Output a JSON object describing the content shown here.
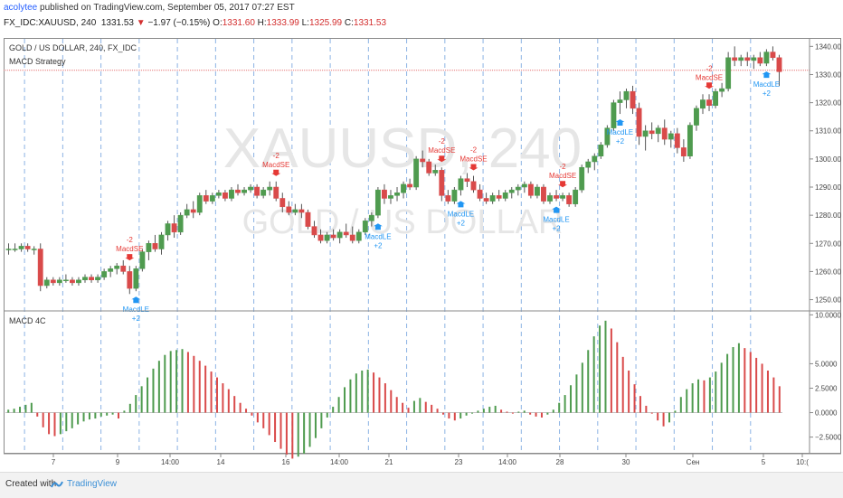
{
  "header": {
    "author": "acolytee",
    "published": " published on TradingView.com, September 05, 2017 07:27 EST",
    "symbol": "FX_IDC:XAUUSD, 240",
    "last": "1331.53",
    "change": "−1.97 (−0.15%)",
    "o_label": "O:",
    "o": "1331.60",
    "h_label": "H:",
    "h": "1333.99",
    "l_label": "L:",
    "l": "1325.99",
    "c_label": "C:",
    "c": "1331.53"
  },
  "price_pane": {
    "title": "GOLD / US DOLLAR, 240, FX_IDC",
    "strategy": "MACD Strategy",
    "watermark_big": "XAUUSD, 240",
    "watermark_small": "GOLD / US DOLLAR",
    "last_price_line": 1331.53
  },
  "macd_pane": {
    "title": "MACD 4C"
  },
  "footer": {
    "created": "Created with",
    "brand": "TradingView"
  },
  "colors": {
    "up": "#4f9b4f",
    "down": "#d94a4a",
    "buy": "#2196f3",
    "sell": "#e53935",
    "grid": "#6fa0dd"
  },
  "chart_data": [
    {
      "type": "candlestick",
      "title": "GOLD / US DOLLAR, 240, FX_IDC",
      "ylim": [
        1246,
        1343
      ],
      "y_ticks": [
        1250.0,
        1260.0,
        1270.0,
        1280.0,
        1290.0,
        1300.0,
        1310.0,
        1320.0,
        1330.0,
        1340.0
      ],
      "x_ticks": [
        "7",
        "9",
        "14:00",
        "14",
        "16",
        "14:00",
        "21",
        "23",
        "14:00",
        "28",
        "30",
        "Сен",
        "5",
        "10:("
      ],
      "series": [
        {
          "fields": [
            "open",
            "high",
            "low",
            "close"
          ],
          "values": [
            [
              1268,
              1270,
              1266,
              1268
            ],
            [
              1268,
              1270,
              1267,
              1268
            ],
            [
              1268,
              1270,
              1267,
              1269
            ],
            [
              1269,
              1270,
              1267,
              1268
            ],
            [
              1268,
              1269,
              1266,
              1268
            ],
            [
              1268,
              1270,
              1253,
              1255
            ],
            [
              1255,
              1258,
              1254,
              1257
            ],
            [
              1257,
              1258,
              1255,
              1256
            ],
            [
              1256,
              1258,
              1255,
              1257
            ],
            [
              1257,
              1259,
              1256,
              1257
            ],
            [
              1257,
              1258,
              1255,
              1256
            ],
            [
              1256,
              1258,
              1255,
              1257
            ],
            [
              1257,
              1259,
              1256,
              1258
            ],
            [
              1258,
              1259,
              1256,
              1257
            ],
            [
              1257,
              1259,
              1256,
              1258
            ],
            [
              1258,
              1261,
              1257,
              1260
            ],
            [
              1260,
              1262,
              1258,
              1261
            ],
            [
              1261,
              1263,
              1259,
              1262
            ],
            [
              1262,
              1264,
              1259,
              1260
            ],
            [
              1260,
              1262,
              1252,
              1254
            ],
            [
              1254,
              1262,
              1253,
              1261
            ],
            [
              1261,
              1268,
              1260,
              1267
            ],
            [
              1267,
              1271,
              1264,
              1270
            ],
            [
              1270,
              1273,
              1267,
              1268
            ],
            [
              1268,
              1274,
              1266,
              1273
            ],
            [
              1273,
              1278,
              1271,
              1277
            ],
            [
              1277,
              1280,
              1272,
              1274
            ],
            [
              1274,
              1281,
              1273,
              1280
            ],
            [
              1280,
              1284,
              1279,
              1282
            ],
            [
              1282,
              1285,
              1279,
              1281
            ],
            [
              1281,
              1288,
              1280,
              1287
            ],
            [
              1287,
              1289,
              1284,
              1285
            ],
            [
              1285,
              1288,
              1284,
              1287
            ],
            [
              1287,
              1289,
              1286,
              1288
            ],
            [
              1288,
              1289,
              1285,
              1286
            ],
            [
              1286,
              1290,
              1285,
              1289
            ],
            [
              1289,
              1291,
              1287,
              1288
            ],
            [
              1288,
              1290,
              1287,
              1289
            ],
            [
              1289,
              1291,
              1288,
              1290
            ],
            [
              1290,
              1291,
              1286,
              1287
            ],
            [
              1287,
              1290,
              1286,
              1289
            ],
            [
              1289,
              1292,
              1287,
              1290
            ],
            [
              1290,
              1292,
              1285,
              1286
            ],
            [
              1286,
              1288,
              1281,
              1283
            ],
            [
              1283,
              1285,
              1280,
              1281
            ],
            [
              1281,
              1284,
              1280,
              1282
            ],
            [
              1282,
              1284,
              1279,
              1281
            ],
            [
              1281,
              1282,
              1275,
              1276
            ],
            [
              1276,
              1278,
              1272,
              1273
            ],
            [
              1273,
              1275,
              1270,
              1271
            ],
            [
              1271,
              1274,
              1270,
              1273
            ],
            [
              1273,
              1275,
              1271,
              1272
            ],
            [
              1272,
              1275,
              1270,
              1274
            ],
            [
              1274,
              1277,
              1272,
              1273
            ],
            [
              1273,
              1276,
              1270,
              1271
            ],
            [
              1271,
              1275,
              1270,
              1274
            ],
            [
              1274,
              1279,
              1273,
              1278
            ],
            [
              1278,
              1281,
              1276,
              1280
            ],
            [
              1280,
              1290,
              1279,
              1289
            ],
            [
              1289,
              1291,
              1284,
              1286
            ],
            [
              1286,
              1289,
              1284,
              1287
            ],
            [
              1287,
              1290,
              1285,
              1288
            ],
            [
              1288,
              1292,
              1286,
              1291
            ],
            [
              1291,
              1293,
              1289,
              1290
            ],
            [
              1290,
              1301,
              1289,
              1300
            ],
            [
              1300,
              1303,
              1297,
              1299
            ],
            [
              1299,
              1300,
              1294,
              1295
            ],
            [
              1295,
              1298,
              1294,
              1296
            ],
            [
              1296,
              1297,
              1285,
              1287
            ],
            [
              1287,
              1289,
              1284,
              1285
            ],
            [
              1285,
              1290,
              1284,
              1289
            ],
            [
              1289,
              1294,
              1287,
              1293
            ],
            [
              1293,
              1295,
              1290,
              1292
            ],
            [
              1292,
              1294,
              1288,
              1289
            ],
            [
              1289,
              1291,
              1285,
              1286
            ],
            [
              1286,
              1288,
              1284,
              1285
            ],
            [
              1285,
              1288,
              1284,
              1287
            ],
            [
              1287,
              1289,
              1285,
              1286
            ],
            [
              1286,
              1289,
              1285,
              1288
            ],
            [
              1288,
              1290,
              1286,
              1289
            ],
            [
              1289,
              1291,
              1287,
              1290
            ],
            [
              1290,
              1292,
              1288,
              1291
            ],
            [
              1291,
              1292,
              1286,
              1287
            ],
            [
              1287,
              1291,
              1286,
              1290
            ],
            [
              1290,
              1291,
              1284,
              1285
            ],
            [
              1285,
              1288,
              1284,
              1287
            ],
            [
              1287,
              1289,
              1285,
              1286
            ],
            [
              1286,
              1288,
              1285,
              1287
            ],
            [
              1287,
              1288,
              1283,
              1284
            ],
            [
              1284,
              1290,
              1283,
              1289
            ],
            [
              1289,
              1298,
              1288,
              1297
            ],
            [
              1297,
              1300,
              1295,
              1299
            ],
            [
              1299,
              1302,
              1296,
              1301
            ],
            [
              1301,
              1306,
              1300,
              1305
            ],
            [
              1305,
              1312,
              1304,
              1311
            ],
            [
              1311,
              1321,
              1310,
              1320
            ],
            [
              1320,
              1324,
              1316,
              1321
            ],
            [
              1321,
              1325,
              1318,
              1324
            ],
            [
              1324,
              1326,
              1316,
              1318
            ],
            [
              1318,
              1320,
              1305,
              1308
            ],
            [
              1308,
              1312,
              1303,
              1310
            ],
            [
              1310,
              1313,
              1307,
              1309
            ],
            [
              1309,
              1312,
              1306,
              1311
            ],
            [
              1311,
              1314,
              1305,
              1307
            ],
            [
              1307,
              1310,
              1304,
              1309
            ],
            [
              1309,
              1311,
              1302,
              1304
            ],
            [
              1304,
              1307,
              1299,
              1301
            ],
            [
              1301,
              1313,
              1300,
              1312
            ],
            [
              1312,
              1319,
              1310,
              1318
            ],
            [
              1318,
              1323,
              1316,
              1321
            ],
            [
              1321,
              1323,
              1317,
              1319
            ],
            [
              1319,
              1325,
              1318,
              1324
            ],
            [
              1324,
              1327,
              1322,
              1325
            ],
            [
              1325,
              1338,
              1324,
              1336
            ],
            [
              1336,
              1340,
              1333,
              1335
            ],
            [
              1335,
              1337,
              1333,
              1336
            ],
            [
              1336,
              1338,
              1333,
              1335
            ],
            [
              1335,
              1337,
              1332,
              1336
            ],
            [
              1336,
              1338,
              1333,
              1334
            ],
            [
              1334,
              1339,
              1333,
              1338
            ],
            [
              1338,
              1340,
              1335,
              1336
            ],
            [
              1336,
              1337,
              1326,
              1331
            ]
          ]
        }
      ],
      "annotations": [
        {
          "label": "MacdSE",
          "qty": "-2",
          "bar": 19
        },
        {
          "label": "MacdLE",
          "qty": "+2",
          "bar": 20
        },
        {
          "label": "MacdSE",
          "qty": "-2",
          "bar": 42
        },
        {
          "label": "MacdLE",
          "qty": "+2",
          "bar": 58
        },
        {
          "label": "MacdSE",
          "qty": "-2",
          "bar": 68
        },
        {
          "label": "MacdLE",
          "qty": "+2",
          "bar": 71
        },
        {
          "label": "MacdSE",
          "qty": "-2",
          "bar": 73
        },
        {
          "label": "MacdLE",
          "qty": "+2",
          "bar": 86
        },
        {
          "label": "MacdSE",
          "qty": "-2",
          "bar": 87
        },
        {
          "label": "MacdLE",
          "qty": "+2",
          "bar": 96
        },
        {
          "label": "MacdSE",
          "qty": "-2",
          "bar": 110
        },
        {
          "label": "MacdLE",
          "qty": "+2",
          "bar": 119
        }
      ]
    },
    {
      "type": "bar",
      "title": "MACD 4C",
      "ylim": [
        -4.2,
        10.4
      ],
      "y_ticks": [
        10.0,
        5.0,
        2.5,
        0.0,
        -2.5
      ],
      "series": [
        {
          "name": "MACD 4C",
          "values": [
            0.3,
            0.4,
            0.6,
            0.8,
            1.0,
            -0.4,
            -1.5,
            -2.2,
            -2.4,
            -2.2,
            -1.9,
            -1.6,
            -1.2,
            -0.9,
            -0.7,
            -0.6,
            -0.4,
            -0.3,
            -0.2,
            -0.6,
            0.2,
            0.9,
            1.8,
            2.7,
            3.6,
            4.5,
            5.3,
            5.9,
            6.3,
            6.4,
            6.5,
            6.2,
            5.8,
            5.3,
            4.8,
            4.2,
            3.6,
            3.0,
            2.4,
            1.7,
            1.0,
            0.4,
            -0.3,
            -1.0,
            -1.6,
            -2.3,
            -3.0,
            -3.7,
            -4.3,
            -4.7,
            -4.5,
            -4.2,
            -3.5,
            -2.6,
            -1.6,
            -0.5,
            0.6,
            1.6,
            2.6,
            3.4,
            4.0,
            4.3,
            4.4,
            4.1,
            3.6,
            3.0,
            2.3,
            1.6,
            1.0,
            0.5,
            1.2,
            1.5,
            1.1,
            0.8,
            0.4,
            -0.2,
            -0.6,
            -0.8,
            -0.6,
            -0.3,
            -0.1,
            0.2,
            0.4,
            0.6,
            0.7,
            0.3,
            0.1,
            -0.1,
            0.1,
            0.2,
            -0.2,
            -0.4,
            -0.5,
            -0.2,
            0.3,
            1.0,
            1.8,
            2.8,
            3.9,
            5.1,
            6.4,
            7.8,
            8.9,
            9.4,
            8.6,
            7.2,
            5.7,
            4.3,
            2.9,
            1.7,
            0.7,
            -0.1,
            -0.8,
            -1.4,
            -1.0,
            0.2,
            1.6,
            2.4,
            3.0,
            3.4,
            3.3,
            3.6,
            4.2,
            5.1,
            6.0,
            6.7,
            7.1,
            6.6,
            6.2,
            5.6,
            5.0,
            4.3,
            3.6,
            2.7
          ]
        }
      ]
    }
  ]
}
